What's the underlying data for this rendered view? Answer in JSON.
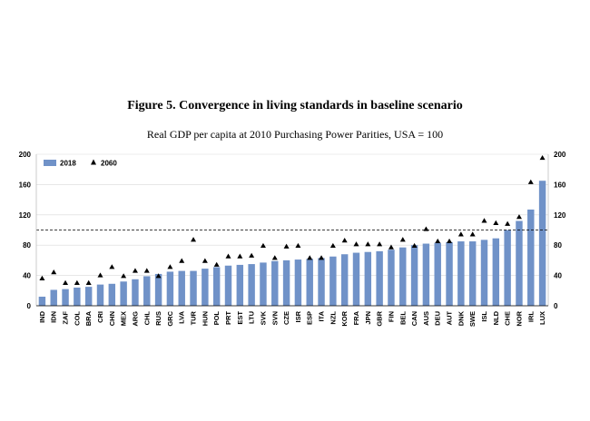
{
  "figure": {
    "title": "Figure 5. Convergence in living standards in baseline scenario",
    "subtitle": "Real GDP per capita at 2010 Purchasing Power Parities, USA = 100"
  },
  "chart_data": {
    "type": "bar",
    "categories": [
      "IND",
      "IDN",
      "ZAF",
      "COL",
      "BRA",
      "CRI",
      "CHN",
      "MEX",
      "ARG",
      "CHL",
      "RUS",
      "GRC",
      "LVA",
      "TUR",
      "HUN",
      "POL",
      "PRT",
      "EST",
      "LTU",
      "SVK",
      "SVN",
      "CZE",
      "ISR",
      "ESP",
      "ITA",
      "NZL",
      "KOR",
      "FRA",
      "JPN",
      "GBR",
      "FIN",
      "BEL",
      "CAN",
      "AUS",
      "DEU",
      "AUT",
      "DNK",
      "SWE",
      "ISL",
      "NLD",
      "CHE",
      "NOR",
      "IRL",
      "LUX"
    ],
    "series": [
      {
        "name": "2018",
        "type": "bar",
        "color": "#7092c8",
        "values": [
          12,
          21,
          22,
          24,
          25,
          28,
          29,
          32,
          35,
          39,
          42,
          45,
          46,
          46,
          49,
          51,
          53,
          54,
          55,
          57,
          59,
          60,
          61,
          62,
          63,
          65,
          68,
          70,
          71,
          72,
          74,
          77,
          80,
          82,
          83,
          84,
          85,
          85,
          87,
          89,
          100,
          112,
          127,
          165
        ]
      },
      {
        "name": "2060",
        "type": "marker",
        "marker": "triangle",
        "color": "#000000",
        "values": [
          36,
          44,
          30,
          30,
          30,
          40,
          51,
          39,
          46,
          46,
          39,
          51,
          59,
          87,
          59,
          54,
          65,
          65,
          66,
          79,
          63,
          78,
          79,
          63,
          63,
          79,
          86,
          81,
          81,
          81,
          77,
          87,
          79,
          101,
          85,
          85,
          94,
          94,
          112,
          109,
          108,
          117,
          163,
          195
        ]
      }
    ],
    "reference_line": {
      "value": 100,
      "style": "dashed"
    },
    "ylim": [
      0,
      200
    ],
    "yticks": [
      0,
      40,
      80,
      120,
      160,
      200
    ],
    "y_axis_both_sides": true,
    "legend_position": "top-left",
    "xlabel": "",
    "ylabel": ""
  }
}
